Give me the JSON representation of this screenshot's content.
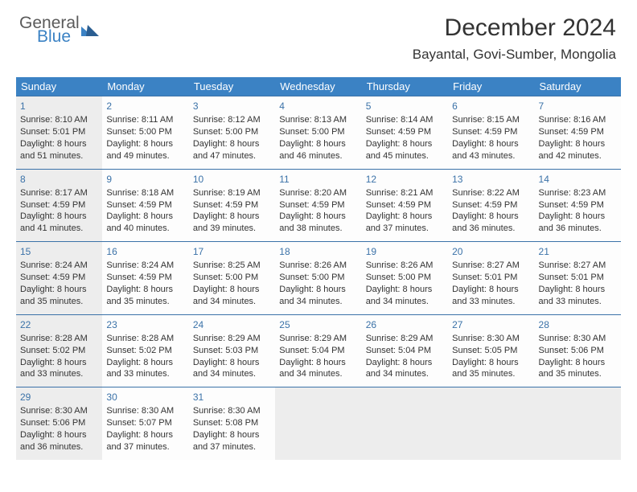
{
  "logo": {
    "general": "General",
    "blue": "Blue"
  },
  "title": "December 2024",
  "location": "Bayantal, Govi-Sumber, Mongolia",
  "colors": {
    "header_bg": "#3b82c4",
    "header_text": "#ffffff",
    "daynum": "#3b72a8",
    "body_text": "#333333",
    "shaded": "#ededed",
    "border": "#3b72a8"
  },
  "weekdays": [
    "Sunday",
    "Monday",
    "Tuesday",
    "Wednesday",
    "Thursday",
    "Friday",
    "Saturday"
  ],
  "weeks": [
    [
      {
        "n": 1,
        "sunrise": "8:10 AM",
        "sunset": "5:01 PM",
        "dl": "8 hours and 51 minutes.",
        "shade": true
      },
      {
        "n": 2,
        "sunrise": "8:11 AM",
        "sunset": "5:00 PM",
        "dl": "8 hours and 49 minutes."
      },
      {
        "n": 3,
        "sunrise": "8:12 AM",
        "sunset": "5:00 PM",
        "dl": "8 hours and 47 minutes."
      },
      {
        "n": 4,
        "sunrise": "8:13 AM",
        "sunset": "5:00 PM",
        "dl": "8 hours and 46 minutes."
      },
      {
        "n": 5,
        "sunrise": "8:14 AM",
        "sunset": "4:59 PM",
        "dl": "8 hours and 45 minutes."
      },
      {
        "n": 6,
        "sunrise": "8:15 AM",
        "sunset": "4:59 PM",
        "dl": "8 hours and 43 minutes."
      },
      {
        "n": 7,
        "sunrise": "8:16 AM",
        "sunset": "4:59 PM",
        "dl": "8 hours and 42 minutes."
      }
    ],
    [
      {
        "n": 8,
        "sunrise": "8:17 AM",
        "sunset": "4:59 PM",
        "dl": "8 hours and 41 minutes.",
        "shade": true
      },
      {
        "n": 9,
        "sunrise": "8:18 AM",
        "sunset": "4:59 PM",
        "dl": "8 hours and 40 minutes."
      },
      {
        "n": 10,
        "sunrise": "8:19 AM",
        "sunset": "4:59 PM",
        "dl": "8 hours and 39 minutes."
      },
      {
        "n": 11,
        "sunrise": "8:20 AM",
        "sunset": "4:59 PM",
        "dl": "8 hours and 38 minutes."
      },
      {
        "n": 12,
        "sunrise": "8:21 AM",
        "sunset": "4:59 PM",
        "dl": "8 hours and 37 minutes."
      },
      {
        "n": 13,
        "sunrise": "8:22 AM",
        "sunset": "4:59 PM",
        "dl": "8 hours and 36 minutes."
      },
      {
        "n": 14,
        "sunrise": "8:23 AM",
        "sunset": "4:59 PM",
        "dl": "8 hours and 36 minutes."
      }
    ],
    [
      {
        "n": 15,
        "sunrise": "8:24 AM",
        "sunset": "4:59 PM",
        "dl": "8 hours and 35 minutes.",
        "shade": true
      },
      {
        "n": 16,
        "sunrise": "8:24 AM",
        "sunset": "4:59 PM",
        "dl": "8 hours and 35 minutes."
      },
      {
        "n": 17,
        "sunrise": "8:25 AM",
        "sunset": "5:00 PM",
        "dl": "8 hours and 34 minutes."
      },
      {
        "n": 18,
        "sunrise": "8:26 AM",
        "sunset": "5:00 PM",
        "dl": "8 hours and 34 minutes."
      },
      {
        "n": 19,
        "sunrise": "8:26 AM",
        "sunset": "5:00 PM",
        "dl": "8 hours and 34 minutes."
      },
      {
        "n": 20,
        "sunrise": "8:27 AM",
        "sunset": "5:01 PM",
        "dl": "8 hours and 33 minutes."
      },
      {
        "n": 21,
        "sunrise": "8:27 AM",
        "sunset": "5:01 PM",
        "dl": "8 hours and 33 minutes."
      }
    ],
    [
      {
        "n": 22,
        "sunrise": "8:28 AM",
        "sunset": "5:02 PM",
        "dl": "8 hours and 33 minutes.",
        "shade": true
      },
      {
        "n": 23,
        "sunrise": "8:28 AM",
        "sunset": "5:02 PM",
        "dl": "8 hours and 33 minutes."
      },
      {
        "n": 24,
        "sunrise": "8:29 AM",
        "sunset": "5:03 PM",
        "dl": "8 hours and 34 minutes."
      },
      {
        "n": 25,
        "sunrise": "8:29 AM",
        "sunset": "5:04 PM",
        "dl": "8 hours and 34 minutes."
      },
      {
        "n": 26,
        "sunrise": "8:29 AM",
        "sunset": "5:04 PM",
        "dl": "8 hours and 34 minutes."
      },
      {
        "n": 27,
        "sunrise": "8:30 AM",
        "sunset": "5:05 PM",
        "dl": "8 hours and 35 minutes."
      },
      {
        "n": 28,
        "sunrise": "8:30 AM",
        "sunset": "5:06 PM",
        "dl": "8 hours and 35 minutes."
      }
    ],
    [
      {
        "n": 29,
        "sunrise": "8:30 AM",
        "sunset": "5:06 PM",
        "dl": "8 hours and 36 minutes.",
        "shade": true
      },
      {
        "n": 30,
        "sunrise": "8:30 AM",
        "sunset": "5:07 PM",
        "dl": "8 hours and 37 minutes."
      },
      {
        "n": 31,
        "sunrise": "8:30 AM",
        "sunset": "5:08 PM",
        "dl": "8 hours and 37 minutes."
      },
      {
        "empty": true
      },
      {
        "empty": true
      },
      {
        "empty": true
      },
      {
        "empty": true
      }
    ]
  ],
  "labels": {
    "sunrise": "Sunrise:",
    "sunset": "Sunset:",
    "daylight": "Daylight:"
  }
}
